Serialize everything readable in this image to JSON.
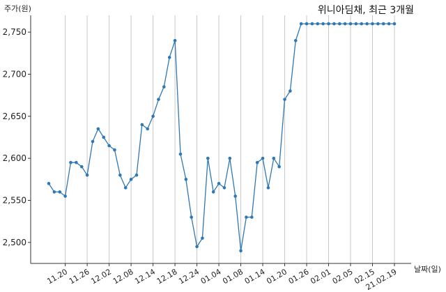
{
  "chart_data": {
    "type": "line",
    "title": "위니아딤채, 최근 3개월",
    "ylabel": "주가(원)",
    "xlabel": "날짜(일)",
    "ylim": [
      2475,
      2770
    ],
    "yticks": [
      2500,
      2550,
      2600,
      2650,
      2700,
      2750
    ],
    "ytick_labels": [
      "2,500",
      "2,550",
      "2,600",
      "2,650",
      "2,700",
      "2,750"
    ],
    "xtick_labels": [
      "11.20",
      "11.26",
      "12.02",
      "12.08",
      "12.14",
      "12.18",
      "12.24",
      "01.04",
      "01.08",
      "01.14",
      "01.20",
      "01.26",
      "02.01",
      "02.05",
      "02.15",
      "21.02.19"
    ],
    "xtick_index": [
      3,
      7,
      11,
      15,
      19,
      23,
      27,
      31,
      35,
      39,
      43,
      47,
      51,
      55,
      59,
      63
    ],
    "grid": "vertical",
    "color": "#2e78b5",
    "series": [
      {
        "values": [
          2570,
          2560,
          2560,
          2555,
          2595,
          2595,
          2590,
          2580,
          2620,
          2635,
          2625,
          2615,
          2610,
          2580,
          2565,
          2575,
          2580,
          2640,
          2635,
          2650,
          2670,
          2685,
          2720,
          2740,
          2605,
          2575,
          2530,
          2495,
          2505,
          2600,
          2560,
          2570,
          2565,
          2600,
          2555,
          2490,
          2530,
          2530,
          2595,
          2600,
          2565,
          2600,
          2590,
          2670,
          2680,
          2740,
          2760,
          2760,
          2760,
          2760,
          2760,
          2760,
          2760,
          2760,
          2760,
          2760,
          2760,
          2760,
          2760,
          2760,
          2760,
          2760,
          2760,
          2760
        ]
      }
    ]
  }
}
